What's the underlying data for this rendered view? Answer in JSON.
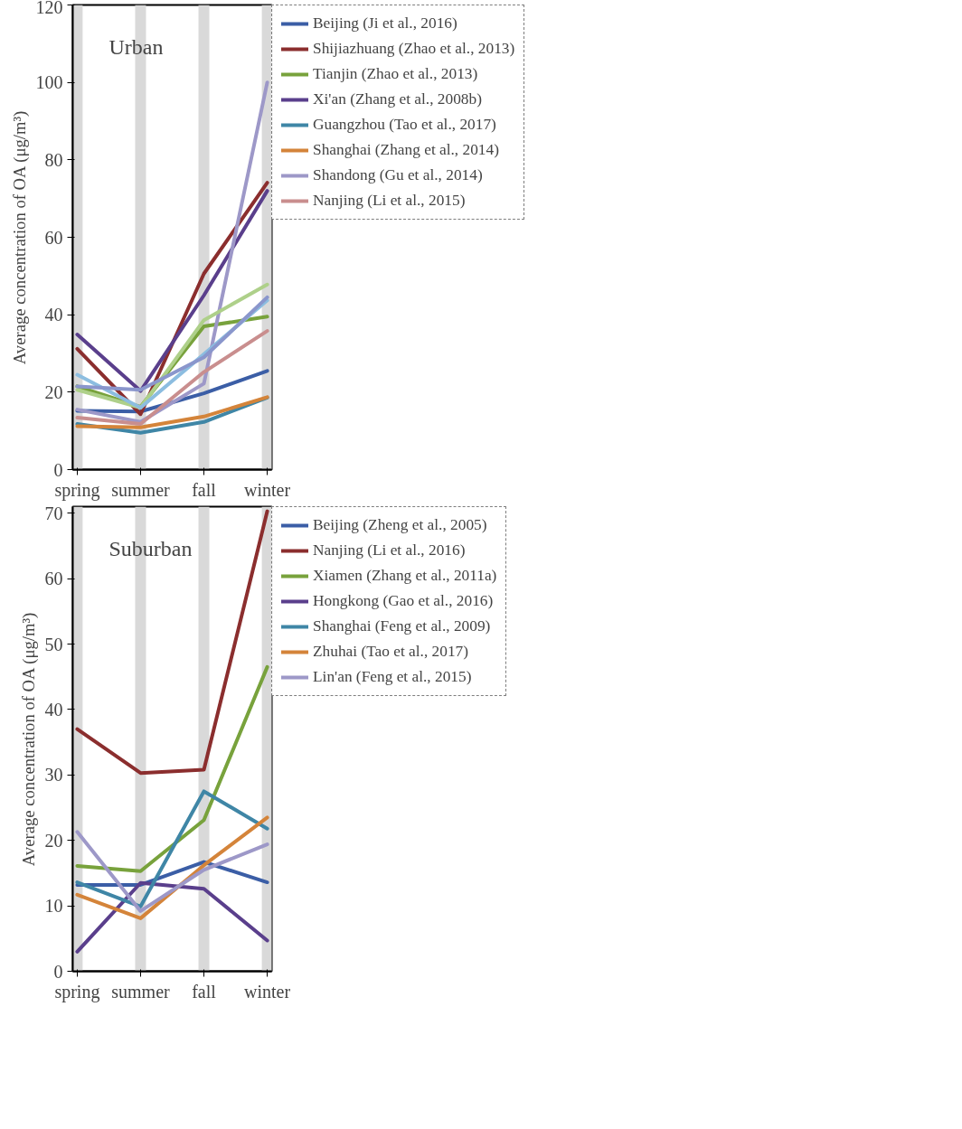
{
  "chart_data": [
    {
      "type": "line",
      "title": "Urban",
      "ylabel": "Average concentration of OA (μg/m³)",
      "categories": [
        "spring",
        "summer",
        "fall",
        "winter"
      ],
      "ylim": [
        0,
        120
      ],
      "yticks": [
        0,
        20,
        40,
        60,
        80,
        100,
        120
      ],
      "legend": "right",
      "grid": false,
      "ref_lines": [
        {
          "axis": "x",
          "value": "spring",
          "color": "#d9d9d9"
        },
        {
          "axis": "x",
          "value": "summer",
          "color": "#d9d9d9"
        },
        {
          "axis": "x",
          "value": "fall",
          "color": "#d9d9d9"
        },
        {
          "axis": "x",
          "value": "winter",
          "color": "#d9d9d9"
        }
      ],
      "series": [
        {
          "name": "Beijing (Ji et al., 2016)",
          "color": "#3b5ea6",
          "values": [
            15.2,
            15,
            19.7,
            25.5
          ]
        },
        {
          "name": "Shijiazhuang (Zhao et al., 2013)",
          "color": "#8b2e2e",
          "values": [
            31.2,
            14.3,
            50.6,
            74.1
          ]
        },
        {
          "name": "Tianjin (Zhao et al., 2013)",
          "color": "#78a23c",
          "values": [
            21.5,
            16.2,
            37,
            39.5
          ]
        },
        {
          "name": "Xi'an (Zhang et al., 2008b)",
          "color": "#5a3f8c",
          "values": [
            34.9,
            20.3,
            45,
            72
          ]
        },
        {
          "name": "Guangzhou (Tao et al., 2017)",
          "color": "#3f86a6",
          "values": [
            11.8,
            9.5,
            12.3,
            18.6
          ]
        },
        {
          "name": "Shanghai (Zhang et al., 2014)",
          "color": "#d4843a",
          "values": [
            11.2,
            10.9,
            13.7,
            18.7
          ]
        },
        {
          "name": "Shandong (Gu et al., 2014)",
          "color": "#9d98c8",
          "values": [
            15.5,
            12.3,
            22.2,
            100
          ]
        },
        {
          "name": "Nanjing (Li et al., 2015)",
          "color": "#c98e8e",
          "values": [
            13.4,
            11.8,
            25.2,
            35.8
          ]
        },
        {
          "color": "#aed08a",
          "values": [
            20.6,
            16,
            38.6,
            47.8
          ]
        },
        {
          "color": "#8cbde0",
          "values": [
            24.5,
            16,
            29.8,
            43.7
          ]
        },
        {
          "color": "#8a96cc",
          "values": [
            21.5,
            20.6,
            29,
            44.5
          ]
        }
      ]
    },
    {
      "type": "line",
      "title": "Suburban",
      "ylabel": "Average concentration of OA (μg/m³)",
      "categories": [
        "spring",
        "summer",
        "fall",
        "winter"
      ],
      "ylim": [
        0,
        71
      ],
      "yticks": [
        0,
        10,
        20,
        30,
        40,
        50,
        60,
        70
      ],
      "legend": "right",
      "grid": false,
      "ref_lines": [
        {
          "axis": "x",
          "value": "spring",
          "color": "#d9d9d9"
        },
        {
          "axis": "x",
          "value": "summer",
          "color": "#d9d9d9"
        },
        {
          "axis": "x",
          "value": "fall",
          "color": "#d9d9d9"
        },
        {
          "axis": "x",
          "value": "winter",
          "color": "#d9d9d9"
        }
      ],
      "series": [
        {
          "name": "Beijing (Zheng et al., 2005)",
          "color": "#3b5ea6",
          "values": [
            13.2,
            13.2,
            16.7,
            13.6
          ]
        },
        {
          "name": "Nanjing (Li et al., 2016)",
          "color": "#8b2e2e",
          "values": [
            37,
            30.3,
            30.8,
            70.3
          ]
        },
        {
          "name": "Xiamen (Zhang et al., 2011a)",
          "color": "#78a23c",
          "values": [
            16.1,
            15.3,
            23.1,
            46.5
          ]
        },
        {
          "name": "Hongkong (Gao et al., 2016)",
          "color": "#5a3f8c",
          "values": [
            3,
            13.5,
            12.6,
            4.7
          ]
        },
        {
          "name": "Shanghai (Feng et al., 2009)",
          "color": "#3f86a6",
          "values": [
            13.6,
            9.9,
            27.5,
            21.8
          ]
        },
        {
          "name": "Zhuhai (Tao et al., 2017)",
          "color": "#d4843a",
          "values": [
            11.7,
            8.1,
            16.2,
            23.5
          ]
        },
        {
          "name": "Lin'an (Feng et al., 2015)",
          "color": "#9d98c8",
          "values": [
            21.3,
            9.2,
            15.5,
            19.4
          ]
        }
      ]
    }
  ]
}
